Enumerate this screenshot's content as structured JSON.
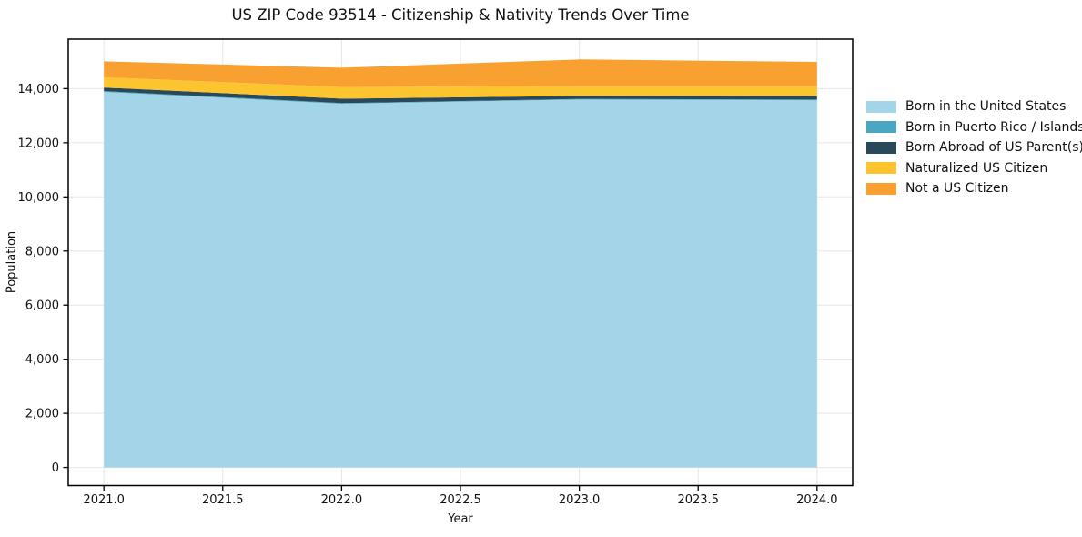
{
  "title": "US ZIP Code 93514 - Citizenship & Nativity Trends Over Time",
  "chart_data": {
    "type": "area",
    "stacked": true,
    "title": "US ZIP Code 93514 - Citizenship & Nativity Trends Over Time",
    "xlabel": "Year",
    "ylabel": "Population",
    "x": [
      2021,
      2022,
      2023,
      2024
    ],
    "series": [
      {
        "name": "Born in the United States",
        "color": "#a3d4e8",
        "values": [
          13880,
          13440,
          13595,
          13570
        ]
      },
      {
        "name": "Born in Puerto Rico / Islands",
        "color": "#4aa6c2",
        "values": [
          30,
          25,
          25,
          25
        ]
      },
      {
        "name": "Born Abroad of US Parent(s)",
        "color": "#29495b",
        "values": [
          130,
          165,
          110,
          135
        ]
      },
      {
        "name": "Naturalized US Citizen",
        "color": "#fcc42e",
        "values": [
          380,
          435,
          360,
          360
        ]
      },
      {
        "name": "Not a US Citizen",
        "color": "#f8a131",
        "values": [
          590,
          710,
          990,
          900
        ]
      }
    ],
    "totals_by_year": [
      15010,
      14775,
      15080,
      14990
    ],
    "x_tick_labels": [
      "2021.0",
      "2021.5",
      "2022.0",
      "2022.5",
      "2023.0",
      "2023.5",
      "2024.0"
    ],
    "y_tick_labels": [
      "0",
      "2,000",
      "4,000",
      "6,000",
      "8,000",
      "10,000",
      "12,000",
      "14,000"
    ],
    "xlim": [
      2020.85,
      2024.15
    ],
    "ylim": [
      -670,
      15830
    ],
    "grid": true,
    "legend_position": "outside-right",
    "colors": {
      "grid": "#e6e6e6",
      "spine": "#000000",
      "text": "#111111"
    }
  }
}
